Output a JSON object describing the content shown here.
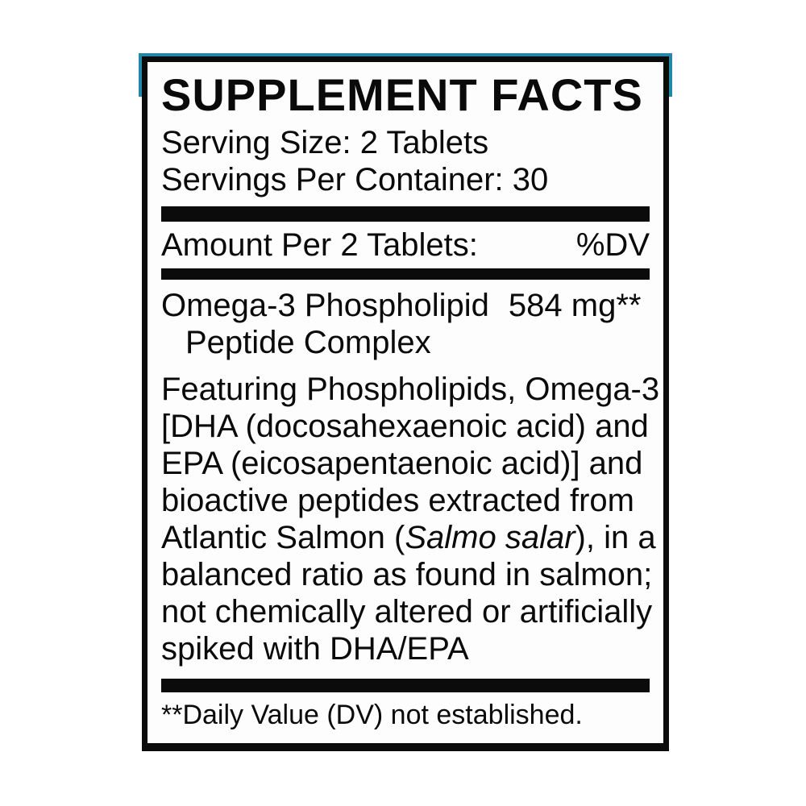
{
  "accent_color": "#2387a8",
  "label": {
    "title": "SUPPLEMENT FACTS",
    "serving_size": "Serving Size: 2 Tablets",
    "servings_per_container": "Servings Per Container: 30",
    "amount_header": {
      "left": "Amount Per 2 Tablets:",
      "right": "%DV"
    },
    "ingredient": {
      "name_line1": "Omega-3 Phospholipid",
      "name_line2": "Peptide Complex",
      "amount": "584 mg",
      "dv": "**"
    },
    "description_lines": [
      [
        {
          "t": "Featuring Phospholipids, Omega-3",
          "i": false
        }
      ],
      [
        {
          "t": "[DHA (docosahexaenoic acid) and",
          "i": false
        }
      ],
      [
        {
          "t": "EPA (eicosapentaenoic acid)] and",
          "i": false
        }
      ],
      [
        {
          "t": "bioactive peptides extracted from",
          "i": false
        }
      ],
      [
        {
          "t": "Atlantic Salmon (",
          "i": false
        },
        {
          "t": "Salmo salar",
          "i": true
        },
        {
          "t": "), in a",
          "i": false
        }
      ],
      [
        {
          "t": "balanced ratio as found in salmon;",
          "i": false
        }
      ],
      [
        {
          "t": "not chemically altered or artificially",
          "i": false
        }
      ],
      [
        {
          "t": "spiked with DHA/EPA",
          "i": false
        }
      ]
    ],
    "footnote": "**Daily Value (DV) not established."
  }
}
